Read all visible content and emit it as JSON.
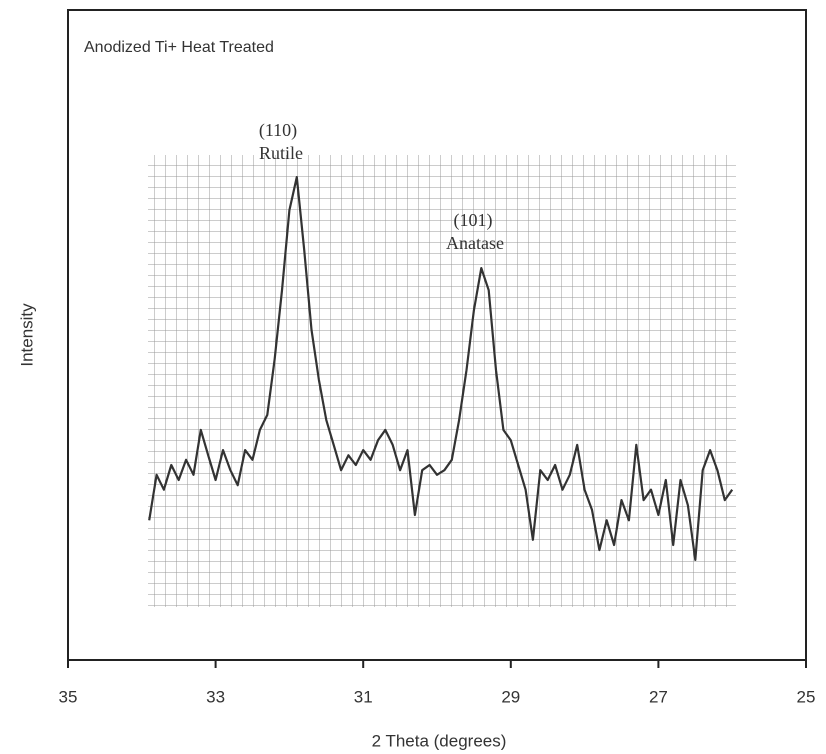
{
  "chart_data": {
    "type": "line",
    "title": "Anodized Ti+ Heat Treated",
    "xlabel": "2 Theta (degrees)",
    "ylabel": "Intensity",
    "annotations": [
      "(110)",
      "Rutile",
      "(101)",
      "Anatase"
    ],
    "xlim": [
      35,
      25
    ],
    "xticks": [
      35,
      33,
      31,
      29,
      27,
      25
    ],
    "ylim": [
      0,
      100
    ],
    "color": "#333333",
    "x": [
      33.9,
      33.8,
      33.7,
      33.6,
      33.5,
      33.4,
      33.3,
      33.2,
      33.1,
      33.0,
      32.9,
      32.8,
      32.7,
      32.6,
      32.5,
      32.4,
      32.3,
      32.2,
      32.1,
      32.0,
      31.9,
      31.8,
      31.7,
      31.6,
      31.5,
      31.4,
      31.3,
      31.2,
      31.1,
      31.0,
      30.9,
      30.8,
      30.7,
      30.6,
      30.5,
      30.4,
      30.3,
      30.2,
      30.1,
      30.0,
      29.9,
      29.8,
      29.7,
      29.6,
      29.5,
      29.4,
      29.3,
      29.2,
      29.1,
      29.0,
      28.9,
      28.8,
      28.7,
      28.6,
      28.5,
      28.4,
      28.3,
      28.2,
      28.1,
      28.0,
      27.9,
      27.8,
      27.7,
      27.6,
      27.5,
      27.4,
      27.3,
      27.2,
      27.1,
      27.0,
      26.9,
      26.8,
      26.7,
      26.6,
      26.5,
      26.4,
      26.3,
      26.2,
      26.1,
      26.0
    ],
    "values": [
      21.5,
      28.5,
      26.2,
      30.0,
      27.7,
      30.8,
      28.5,
      35.4,
      31.5,
      27.7,
      32.3,
      29.2,
      26.9,
      32.3,
      30.8,
      35.4,
      37.7,
      46.2,
      56.9,
      69.2,
      74.3,
      63.1,
      50.8,
      43.1,
      36.9,
      33.1,
      29.2,
      31.5,
      30.0,
      32.3,
      30.8,
      33.8,
      35.4,
      33.1,
      29.2,
      32.3,
      22.3,
      29.2,
      30.0,
      28.5,
      29.2,
      30.8,
      36.9,
      44.6,
      53.8,
      60.3,
      56.9,
      44.6,
      35.4,
      33.8,
      30.0,
      26.2,
      18.5,
      29.2,
      27.7,
      30.0,
      26.2,
      28.5,
      33.1,
      26.2,
      23.1,
      16.9,
      21.5,
      17.7,
      24.6,
      21.5,
      33.1,
      24.6,
      26.2,
      22.3,
      27.7,
      17.7,
      27.7,
      23.8,
      15.4,
      29.2,
      32.3,
      29.2,
      24.6,
      26.2
    ]
  }
}
